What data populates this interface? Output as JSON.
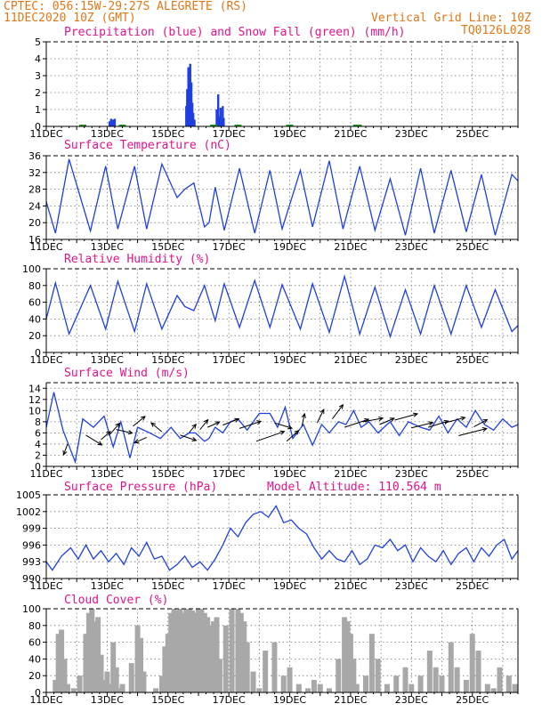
{
  "header": {
    "line1": "CPTEC:   056:15W-29:27S   ALEGRETE (RS)",
    "line2": "11DEC2020 10Z (GMT)",
    "grid_note": "Vertical Grid Line: 10Z",
    "code": "TQ0126L028"
  },
  "colors": {
    "header": "#e07818",
    "title": "#e0148c",
    "series": "#1f3fe0",
    "snow": "#20a020",
    "cloud": "#a8a8a8",
    "frame": "#000000"
  },
  "chart_data": [
    {
      "type": "bar",
      "title": "Precipitation (blue) and Snow Fall (green) (mm/h)",
      "x_tick_labels": [
        "11DEC",
        "13DEC",
        "15DEC",
        "17DEC",
        "19DEC",
        "21DEC",
        "23DEC",
        "25DEC"
      ],
      "x_range_days": [
        0,
        15.5
      ],
      "ylim": [
        0,
        5
      ],
      "y_ticks": [
        0,
        1,
        2,
        3,
        4,
        5
      ],
      "series": [
        {
          "name": "Precipitation (blue)",
          "x": [
            2.08,
            2.13,
            2.2,
            2.25,
            4.6,
            4.63,
            4.67,
            4.7,
            4.73,
            4.77,
            4.8,
            4.83,
            4.87,
            5.6,
            5.65,
            5.7,
            5.73,
            5.77,
            5.8,
            5.83
          ],
          "values": [
            0.3,
            0.45,
            0.4,
            0.45,
            1.2,
            2.2,
            3.5,
            2.7,
            3.7,
            2.6,
            1.4,
            0.8,
            0.4,
            1.0,
            1.9,
            0.6,
            1.1,
            0.4,
            1.2,
            0.5
          ]
        }
      ],
      "snow_marks_x": [
        1.2,
        2.5,
        5.5,
        6.3,
        8.0,
        10.2,
        10.25
      ]
    },
    {
      "type": "line",
      "title": "Surface Temperature (nC)",
      "x_tick_labels": [
        "11DEC",
        "13DEC",
        "15DEC",
        "17DEC",
        "19DEC",
        "21DEC",
        "23DEC",
        "25DEC"
      ],
      "ylim": [
        16,
        36
      ],
      "y_ticks": [
        16,
        20,
        24,
        28,
        32,
        36
      ],
      "series": [
        {
          "name": "Temperature",
          "x": [
            0,
            0.3,
            0.75,
            1.45,
            1.95,
            2.35,
            2.9,
            3.3,
            3.8,
            4.3,
            4.55,
            4.85,
            5.2,
            5.35,
            5.55,
            5.85,
            6.35,
            6.85,
            7.35,
            7.75,
            8.35,
            8.75,
            9.3,
            9.75,
            10.3,
            10.8,
            11.3,
            11.8,
            12.3,
            12.75,
            13.3,
            13.8,
            14.3,
            14.75,
            15.3,
            15.5
          ],
          "y": [
            25,
            17.5,
            35.2,
            18,
            33.5,
            18.5,
            33.5,
            18.5,
            34,
            26,
            28,
            29.5,
            19,
            20,
            28.5,
            18.2,
            33,
            17.5,
            32.5,
            18.5,
            32.5,
            19,
            34.8,
            18.5,
            33.5,
            18.2,
            30.5,
            17,
            33,
            17.5,
            32.5,
            17.8,
            31.5,
            17,
            31.5,
            30
          ]
        }
      ]
    },
    {
      "type": "line",
      "title": "Relative Humidity (%)",
      "x_tick_labels": [
        "11DEC",
        "13DEC",
        "15DEC",
        "17DEC",
        "19DEC",
        "21DEC",
        "23DEC",
        "25DEC"
      ],
      "ylim": [
        0,
        100
      ],
      "y_ticks": [
        0,
        20,
        40,
        60,
        80,
        100
      ],
      "series": [
        {
          "name": "Relative Humidity",
          "x": [
            0,
            0.3,
            0.75,
            1.45,
            1.95,
            2.35,
            2.9,
            3.3,
            3.8,
            4.3,
            4.55,
            4.85,
            5.2,
            5.55,
            5.85,
            6.35,
            6.85,
            7.35,
            7.75,
            8.35,
            8.75,
            9.3,
            9.8,
            10.3,
            10.8,
            11.3,
            11.8,
            12.3,
            12.75,
            13.3,
            13.8,
            14.3,
            14.75,
            15.3,
            15.5
          ],
          "y": [
            40,
            83,
            22,
            80,
            28,
            85,
            25,
            82,
            28,
            68,
            55,
            50,
            80,
            38,
            82,
            30,
            86,
            30,
            81,
            28,
            82,
            24,
            91,
            22,
            78,
            19,
            75,
            22,
            80,
            22,
            80,
            30,
            75,
            25,
            32
          ]
        }
      ]
    },
    {
      "type": "line",
      "title": "Surface Wind (m/s)",
      "x_tick_labels": [
        "11DEC",
        "13DEC",
        "15DEC",
        "17DEC",
        "19DEC",
        "21DEC",
        "23DEC",
        "25DEC"
      ],
      "ylim": [
        0,
        15
      ],
      "y_ticks": [
        0,
        2,
        4,
        6,
        8,
        10,
        12,
        14
      ],
      "series": [
        {
          "name": "Wind speed",
          "x": [
            0,
            0.25,
            0.55,
            0.95,
            1.2,
            1.55,
            1.9,
            2.2,
            2.45,
            2.75,
            3.0,
            3.4,
            3.75,
            4.1,
            4.4,
            4.7,
            4.9,
            5.2,
            5.35,
            5.55,
            5.8,
            6.05,
            6.3,
            6.6,
            7.0,
            7.35,
            7.6,
            7.85,
            8.1,
            8.45,
            8.75,
            9.05,
            9.3,
            9.6,
            9.85,
            10.1,
            10.35,
            10.6,
            10.9,
            11.3,
            11.6,
            11.9,
            12.3,
            12.6,
            12.9,
            13.2,
            13.5,
            13.8,
            14.1,
            14.4,
            14.7,
            15.0,
            15.3,
            15.5
          ],
          "y": [
            7,
            13.3,
            6.5,
            0.8,
            8.5,
            7,
            9,
            3.5,
            8,
            1.5,
            7,
            6,
            5,
            7,
            5,
            6,
            6,
            4.5,
            5,
            7,
            6,
            8,
            8.5,
            6.5,
            9.5,
            9.5,
            7,
            10.6,
            5,
            7.5,
            3.8,
            7.5,
            6,
            8,
            7.5,
            10,
            7,
            8,
            6,
            8,
            5.5,
            8,
            7,
            6.5,
            9,
            6,
            8.5,
            7,
            10,
            7.5,
            6.5,
            8.5,
            7,
            7.5
          ]
        }
      ],
      "arrows": [
        [
          0.7,
          4.0,
          -0.15,
          -0.6
        ],
        [
          1.3,
          5.6,
          0.6,
          -0.55
        ],
        [
          1.8,
          4.8,
          0.35,
          0.45
        ],
        [
          2.1,
          5.8,
          0.35,
          0.6
        ],
        [
          2.3,
          6.6,
          0.6,
          -0.2
        ],
        [
          2.85,
          7.2,
          0.45,
          0.55
        ],
        [
          3.3,
          5.2,
          -0.45,
          -0.3
        ],
        [
          3.8,
          6.2,
          -0.4,
          0.5
        ],
        [
          4.4,
          5.6,
          0.6,
          -0.3
        ],
        [
          4.7,
          6.1,
          0.25,
          0.45
        ],
        [
          5.05,
          6.6,
          0.3,
          0.55
        ],
        [
          5.3,
          7.0,
          0.45,
          0.3
        ],
        [
          5.8,
          7.4,
          0.6,
          0.35
        ],
        [
          6.35,
          6.8,
          0.8,
          0.4
        ],
        [
          6.9,
          4.5,
          1.05,
          0.55
        ],
        [
          7.5,
          7.8,
          0.65,
          -0.3
        ],
        [
          7.9,
          4.5,
          0.45,
          0.6
        ],
        [
          8.4,
          7.2,
          0.1,
          0.7
        ],
        [
          8.9,
          7.8,
          0.25,
          0.75
        ],
        [
          9.4,
          8.5,
          0.4,
          0.8
        ],
        [
          9.8,
          7.0,
          0.9,
          0.45
        ],
        [
          10.4,
          8.0,
          0.75,
          0.2
        ],
        [
          10.95,
          7.5,
          0.55,
          0.35
        ],
        [
          11.45,
          8.3,
          0.85,
          0.35
        ],
        [
          12.0,
          6.9,
          0.8,
          0.3
        ],
        [
          12.55,
          7.0,
          0.75,
          0.35
        ],
        [
          13.1,
          7.8,
          0.75,
          0.3
        ],
        [
          13.55,
          5.5,
          1.05,
          0.4
        ],
        [
          14.05,
          7.1,
          0.5,
          0.4
        ]
      ]
    },
    {
      "type": "line",
      "title": "Surface Pressure (hPa)",
      "subtitle": "Model Altitude: 110.564  m",
      "x_tick_labels": [
        "11DEC",
        "13DEC",
        "15DEC",
        "17DEC",
        "19DEC",
        "21DEC",
        "23DEC",
        "25DEC"
      ],
      "ylim": [
        990,
        1005
      ],
      "y_ticks": [
        990,
        993,
        996,
        999,
        1002,
        1005
      ],
      "y_tick_labels": [
        "990",
        "993",
        "996",
        "999",
        "1002",
        "1005"
      ],
      "series": [
        {
          "name": "Pressure",
          "x": [
            0,
            0.2,
            0.5,
            0.8,
            1.05,
            1.3,
            1.55,
            1.8,
            2.05,
            2.3,
            2.55,
            2.8,
            3.05,
            3.3,
            3.55,
            3.8,
            4.05,
            4.3,
            4.55,
            4.8,
            5.05,
            5.3,
            5.55,
            5.8,
            6.05,
            6.3,
            6.55,
            6.8,
            7.05,
            7.3,
            7.55,
            7.8,
            8.05,
            8.3,
            8.55,
            8.8,
            9.05,
            9.3,
            9.55,
            9.8,
            10.05,
            10.3,
            10.55,
            10.8,
            11.05,
            11.3,
            11.55,
            11.8,
            12.05,
            12.3,
            12.55,
            12.8,
            13.05,
            13.3,
            13.55,
            13.8,
            14.05,
            14.3,
            14.55,
            14.8,
            15.05,
            15.3,
            15.5
          ],
          "y": [
            993,
            991.5,
            994,
            995.5,
            993.5,
            996,
            993.5,
            995,
            993,
            994.5,
            992.5,
            995.5,
            994,
            996.5,
            993.5,
            994,
            991.5,
            992.5,
            994,
            992,
            993,
            991.5,
            993.5,
            996,
            999,
            997.5,
            1000,
            1001.5,
            1002,
            1001,
            1003,
            1000,
            1000.5,
            999,
            998,
            995.5,
            993.5,
            995,
            993.5,
            993,
            995,
            992.5,
            993.5,
            996,
            995.5,
            997,
            995,
            996,
            993,
            995.5,
            994,
            993,
            995,
            992.5,
            994.5,
            995.5,
            993,
            995.5,
            994,
            996,
            997,
            993.5,
            995
          ]
        }
      ]
    },
    {
      "type": "bar",
      "title": "Cloud Cover (%)",
      "x_tick_labels": [
        "11DEC",
        "13DEC",
        "15DEC",
        "17DEC",
        "19DEC",
        "21DEC",
        "23DEC",
        "25DEC"
      ],
      "ylim": [
        0,
        100
      ],
      "y_ticks": [
        0,
        20,
        40,
        60,
        80,
        100
      ],
      "series": [
        {
          "name": "Cloud Cover",
          "x": [
            0.3,
            0.4,
            0.5,
            0.6,
            0.7,
            0.9,
            1.1,
            1.3,
            1.4,
            1.5,
            1.6,
            1.7,
            1.8,
            1.9,
            2.0,
            2.1,
            2.2,
            2.3,
            2.4,
            2.5,
            2.8,
            3.0,
            3.1,
            3.2,
            3.6,
            3.8,
            3.9,
            4.0,
            4.1,
            4.2,
            4.3,
            4.4,
            4.5,
            4.6,
            4.7,
            4.8,
            4.9,
            5.0,
            5.1,
            5.2,
            5.3,
            5.4,
            5.5,
            5.6,
            5.7,
            5.9,
            6.1,
            6.3,
            6.4,
            6.5,
            6.6,
            6.8,
            7.0,
            7.2,
            7.5,
            7.8,
            8.0,
            8.3,
            8.6,
            8.8,
            9.0,
            9.3,
            9.6,
            9.8,
            9.9,
            10.0,
            10.1,
            10.2,
            10.5,
            10.7,
            10.9,
            11.2,
            11.5,
            11.8,
            12.0,
            12.3,
            12.6,
            12.8,
            13.0,
            13.3,
            13.5,
            13.8,
            14.0,
            14.2,
            14.5,
            14.7,
            14.9,
            15.2,
            15.4
          ],
          "values": [
            15,
            70,
            75,
            40,
            10,
            5,
            20,
            70,
            95,
            100,
            85,
            90,
            45,
            15,
            25,
            10,
            60,
            30,
            5,
            10,
            35,
            80,
            65,
            25,
            5,
            20,
            55,
            70,
            95,
            100,
            98,
            100,
            95,
            100,
            100,
            98,
            95,
            100,
            100,
            95,
            90,
            80,
            85,
            90,
            40,
            80,
            100,
            100,
            95,
            85,
            60,
            25,
            5,
            50,
            60,
            20,
            30,
            10,
            5,
            15,
            10,
            5,
            40,
            90,
            85,
            70,
            40,
            10,
            20,
            70,
            40,
            10,
            20,
            30,
            10,
            20,
            50,
            30,
            20,
            60,
            30,
            15,
            70,
            50,
            10,
            5,
            30,
            20,
            10
          ]
        }
      ]
    }
  ]
}
